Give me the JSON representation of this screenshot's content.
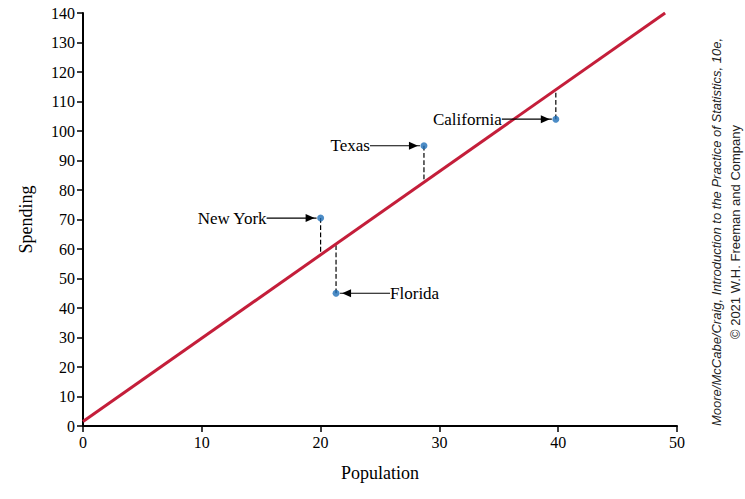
{
  "chart_data": {
    "type": "scatter",
    "x_label": "Population",
    "y_label": "Spending",
    "annotations": [
      "Moore/McCabe/Craig, Introduction to the Practice of Statistics, 10e,",
      "© 2021 W.H. Freeman and Company"
    ],
    "series": [
      {
        "type": "scatter",
        "color": "#1f6fb8",
        "marker": "circle",
        "line_style": "dashed",
        "x": [
          20,
          28.7,
          21.3,
          39.8
        ],
        "values": [
          70.5,
          95,
          45,
          104
        ],
        "labels": [
          "New York",
          "Texas",
          "Florida",
          "California"
        ]
      },
      {
        "type": "line",
        "color": "#c41e3a",
        "line_style": "solid",
        "x": [
          0,
          49
        ],
        "values": [
          1.5,
          140
        ]
      }
    ],
    "xlim": [
      0,
      50
    ],
    "xticks": [
      0,
      10,
      20,
      30,
      40,
      50
    ],
    "ylim": [
      0,
      140
    ],
    "yticks": [
      0,
      10,
      20,
      30,
      40,
      50,
      60,
      70,
      80,
      90,
      100,
      110,
      120,
      130,
      140
    ],
    "grid": false
  }
}
